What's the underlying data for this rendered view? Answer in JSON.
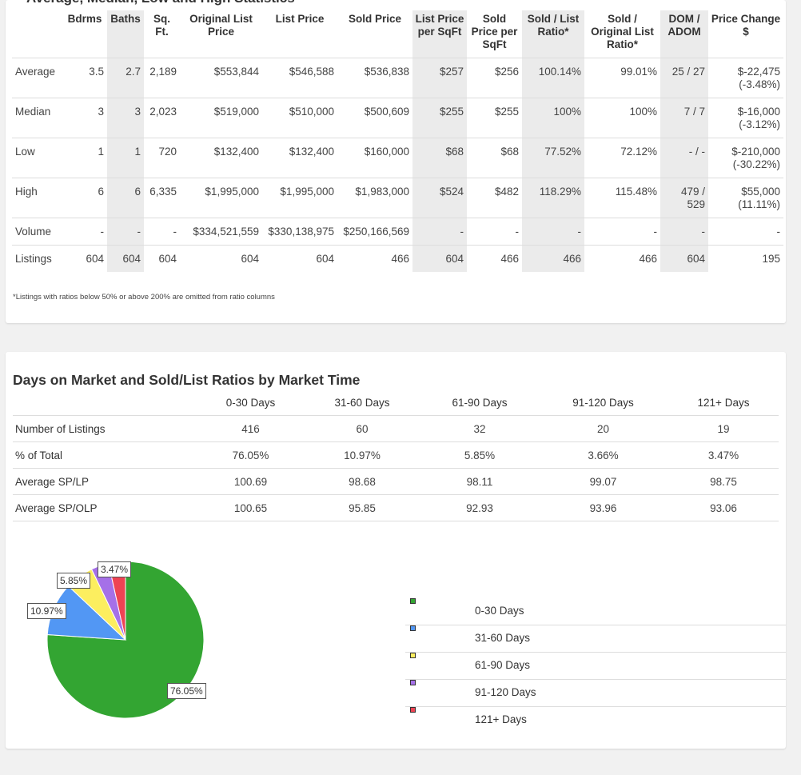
{
  "stats": {
    "section_title": "Average, Median, Low and High Statistics",
    "headers": [
      "",
      "Bdrms",
      "Baths",
      "Sq. Ft.",
      "Original List Price",
      "List Price",
      "Sold Price",
      "List Price per SqFt",
      "Sold Price per SqFt",
      "Sold / List Ratio*",
      "Sold / Original List Ratio*",
      "DOM / ADOM",
      "Price Change $"
    ],
    "rows": [
      {
        "label": "Average",
        "cells": [
          "3.5",
          "2.7",
          "2,189",
          "$553,844",
          "$546,588",
          "$536,838",
          "$257",
          "$256",
          "100.14%",
          "99.01%",
          "25 / 27",
          "$-22,475 (-3.48%)"
        ]
      },
      {
        "label": "Median",
        "cells": [
          "3",
          "3",
          "2,023",
          "$519,000",
          "$510,000",
          "$500,609",
          "$255",
          "$255",
          "100%",
          "100%",
          "7 / 7",
          "$-16,000 (-3.12%)"
        ]
      },
      {
        "label": "Low",
        "cells": [
          "1",
          "1",
          "720",
          "$132,400",
          "$132,400",
          "$160,000",
          "$68",
          "$68",
          "77.52%",
          "72.12%",
          "- / -",
          "$-210,000 (-30.22%)"
        ]
      },
      {
        "label": "High",
        "cells": [
          "6",
          "6",
          "6,335",
          "$1,995,000",
          "$1,995,000",
          "$1,983,000",
          "$524",
          "$482",
          "118.29%",
          "115.48%",
          "479 / 529",
          "$55,000 (11.11%)"
        ]
      },
      {
        "label": "Volume",
        "cells": [
          "-",
          "-",
          "-",
          "$334,521,559",
          "$330,138,975",
          "$250,166,569",
          "-",
          "-",
          "-",
          "-",
          "-",
          "-"
        ]
      },
      {
        "label": "Listings",
        "cells": [
          "604",
          "604",
          "604",
          "604",
          "604",
          "466",
          "604",
          "466",
          "466",
          "466",
          "604",
          "195"
        ]
      }
    ],
    "footnote": "*Listings with ratios below 50% or above 200% are omitted from ratio columns"
  },
  "dom": {
    "title": "Days on Market and Sold/List Ratios by Market Time",
    "headers": [
      "",
      "0-30 Days",
      "31-60 Days",
      "61-90 Days",
      "91-120 Days",
      "121+ Days"
    ],
    "rows": [
      {
        "label": "Number of Listings",
        "cells": [
          "416",
          "60",
          "32",
          "20",
          "19"
        ]
      },
      {
        "label": "% of Total",
        "cells": [
          "76.05%",
          "10.97%",
          "5.85%",
          "3.66%",
          "3.47%"
        ]
      },
      {
        "label": "Average SP/LP",
        "cells": [
          "100.69",
          "98.68",
          "98.11",
          "99.07",
          "98.75"
        ]
      },
      {
        "label": "Average SP/OLP",
        "cells": [
          "100.65",
          "95.85",
          "92.93",
          "93.96",
          "93.06"
        ]
      }
    ]
  },
  "chart_data": {
    "type": "pie",
    "title": "",
    "categories": [
      "0-30 Days",
      "31-60 Days",
      "61-90 Days",
      "91-120 Days",
      "121+ Days"
    ],
    "values": [
      76.05,
      10.97,
      5.85,
      3.66,
      3.47
    ],
    "slice_labels": [
      "76.05%",
      "10.97%",
      "5.85%",
      "",
      "3.47%"
    ],
    "colors": [
      "#33a532",
      "#5297f4",
      "#fcee5f",
      "#a570e8",
      "#ee4353"
    ],
    "legend_position": "right"
  }
}
